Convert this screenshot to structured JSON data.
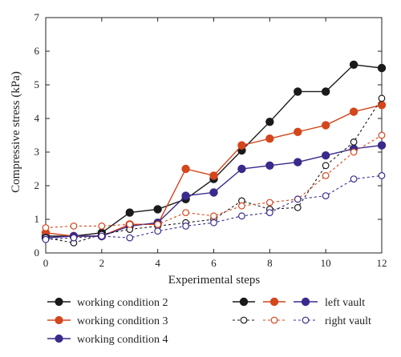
{
  "chart_data": {
    "type": "line",
    "xlabel": "Experimental steps",
    "ylabel": "Compressive stress (kPa)",
    "xlim": [
      0,
      12
    ],
    "ylim": [
      0,
      7
    ],
    "xticks": [
      0,
      2,
      4,
      6,
      8,
      10,
      12
    ],
    "yticks": [
      0,
      1,
      2,
      3,
      4,
      5,
      6,
      7
    ],
    "grid": false,
    "legend_position": "bottom",
    "series": [
      {
        "name": "working condition 2",
        "group": "left vault",
        "color": "#1a1a1a",
        "style": "solid",
        "marker": "filled",
        "x": [
          0,
          1,
          2,
          3,
          4,
          5,
          6,
          7,
          8,
          9,
          10,
          11,
          12
        ],
        "y": [
          0.5,
          0.5,
          0.6,
          1.2,
          1.3,
          1.6,
          2.2,
          3.05,
          3.9,
          4.8,
          4.8,
          5.6,
          5.5
        ]
      },
      {
        "name": "working condition 3",
        "group": "left vault",
        "color": "#d4461c",
        "style": "solid",
        "marker": "filled",
        "x": [
          0,
          1,
          2,
          3,
          4,
          5,
          6,
          7,
          8,
          9,
          10,
          11,
          12
        ],
        "y": [
          0.6,
          0.5,
          0.5,
          0.85,
          0.85,
          2.5,
          2.3,
          3.2,
          3.4,
          3.6,
          3.8,
          4.2,
          4.4
        ]
      },
      {
        "name": "working condition 4",
        "group": "left vault",
        "color": "#3a2a8c",
        "style": "solid",
        "marker": "filled",
        "x": [
          0,
          1,
          2,
          3,
          4,
          5,
          6,
          7,
          8,
          9,
          10,
          11,
          12
        ],
        "y": [
          0.45,
          0.5,
          0.5,
          0.8,
          0.9,
          1.7,
          1.8,
          2.5,
          2.6,
          2.7,
          2.9,
          3.1,
          3.2
        ]
      },
      {
        "name": "working condition 2",
        "group": "right vault",
        "color": "#1a1a1a",
        "style": "dashed",
        "marker": "open",
        "x": [
          0,
          1,
          2,
          3,
          4,
          5,
          6,
          7,
          8,
          9,
          10,
          11,
          12
        ],
        "y": [
          0.45,
          0.3,
          0.55,
          0.7,
          0.8,
          0.9,
          1.0,
          1.55,
          1.3,
          1.35,
          2.6,
          3.3,
          4.6
        ]
      },
      {
        "name": "working condition 3",
        "group": "right vault",
        "color": "#d4461c",
        "style": "dashed",
        "marker": "open",
        "x": [
          0,
          1,
          2,
          3,
          4,
          5,
          6,
          7,
          8,
          9,
          10,
          11,
          12
        ],
        "y": [
          0.75,
          0.8,
          0.8,
          0.85,
          0.85,
          1.2,
          1.1,
          1.4,
          1.5,
          1.6,
          2.3,
          3.0,
          3.5
        ]
      },
      {
        "name": "working condition 4",
        "group": "right vault",
        "color": "#3a2a8c",
        "style": "dashed",
        "marker": "open",
        "x": [
          0,
          1,
          2,
          3,
          4,
          5,
          6,
          7,
          8,
          9,
          10,
          11,
          12
        ],
        "y": [
          0.4,
          0.45,
          0.5,
          0.45,
          0.65,
          0.8,
          0.9,
          1.1,
          1.2,
          1.6,
          1.7,
          2.2,
          2.3
        ]
      }
    ],
    "legend": {
      "conditions": [
        {
          "label": "working condition 2",
          "color": "#1a1a1a"
        },
        {
          "label": "working condition 3",
          "color": "#d4461c"
        },
        {
          "label": "working condition 4",
          "color": "#3a2a8c"
        }
      ],
      "groups": [
        {
          "label": "left vault",
          "style": "solid",
          "marker": "filled"
        },
        {
          "label": "right vault",
          "style": "dashed",
          "marker": "open"
        }
      ]
    }
  }
}
